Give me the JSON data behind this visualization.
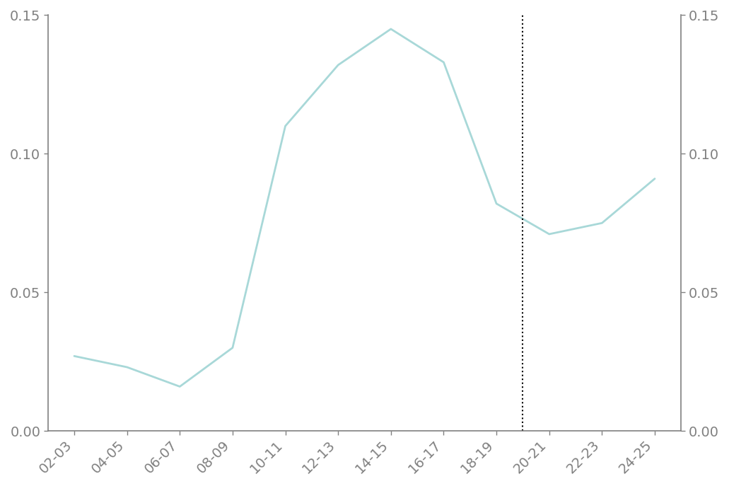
{
  "x_labels": [
    "02-03",
    "04-05",
    "06-07",
    "08-09",
    "10-11",
    "12-13",
    "14-15",
    "16-17",
    "18-19",
    "20-21",
    "22-23",
    "24-25"
  ],
  "x_values": [
    0,
    1,
    2,
    3,
    4,
    5,
    6,
    7,
    8,
    9,
    10,
    11
  ],
  "y_values": [
    0.027,
    0.023,
    0.016,
    0.03,
    0.11,
    0.132,
    0.145,
    0.133,
    0.082,
    0.071,
    0.075,
    0.091
  ],
  "line_color": "#a8d8d8",
  "line_width": 2.0,
  "ylim": [
    0.0,
    0.15
  ],
  "yticks": [
    0.0,
    0.05,
    0.1,
    0.15
  ],
  "vline_x": 9,
  "vline_color": "black",
  "background_color": "#ffffff",
  "spine_color": "#808080",
  "label_color": "#000000",
  "tick_label_fontsize": 14,
  "axis_label_fontsize": 14,
  "figsize": [
    10.31,
    6.87
  ],
  "dpi": 100
}
